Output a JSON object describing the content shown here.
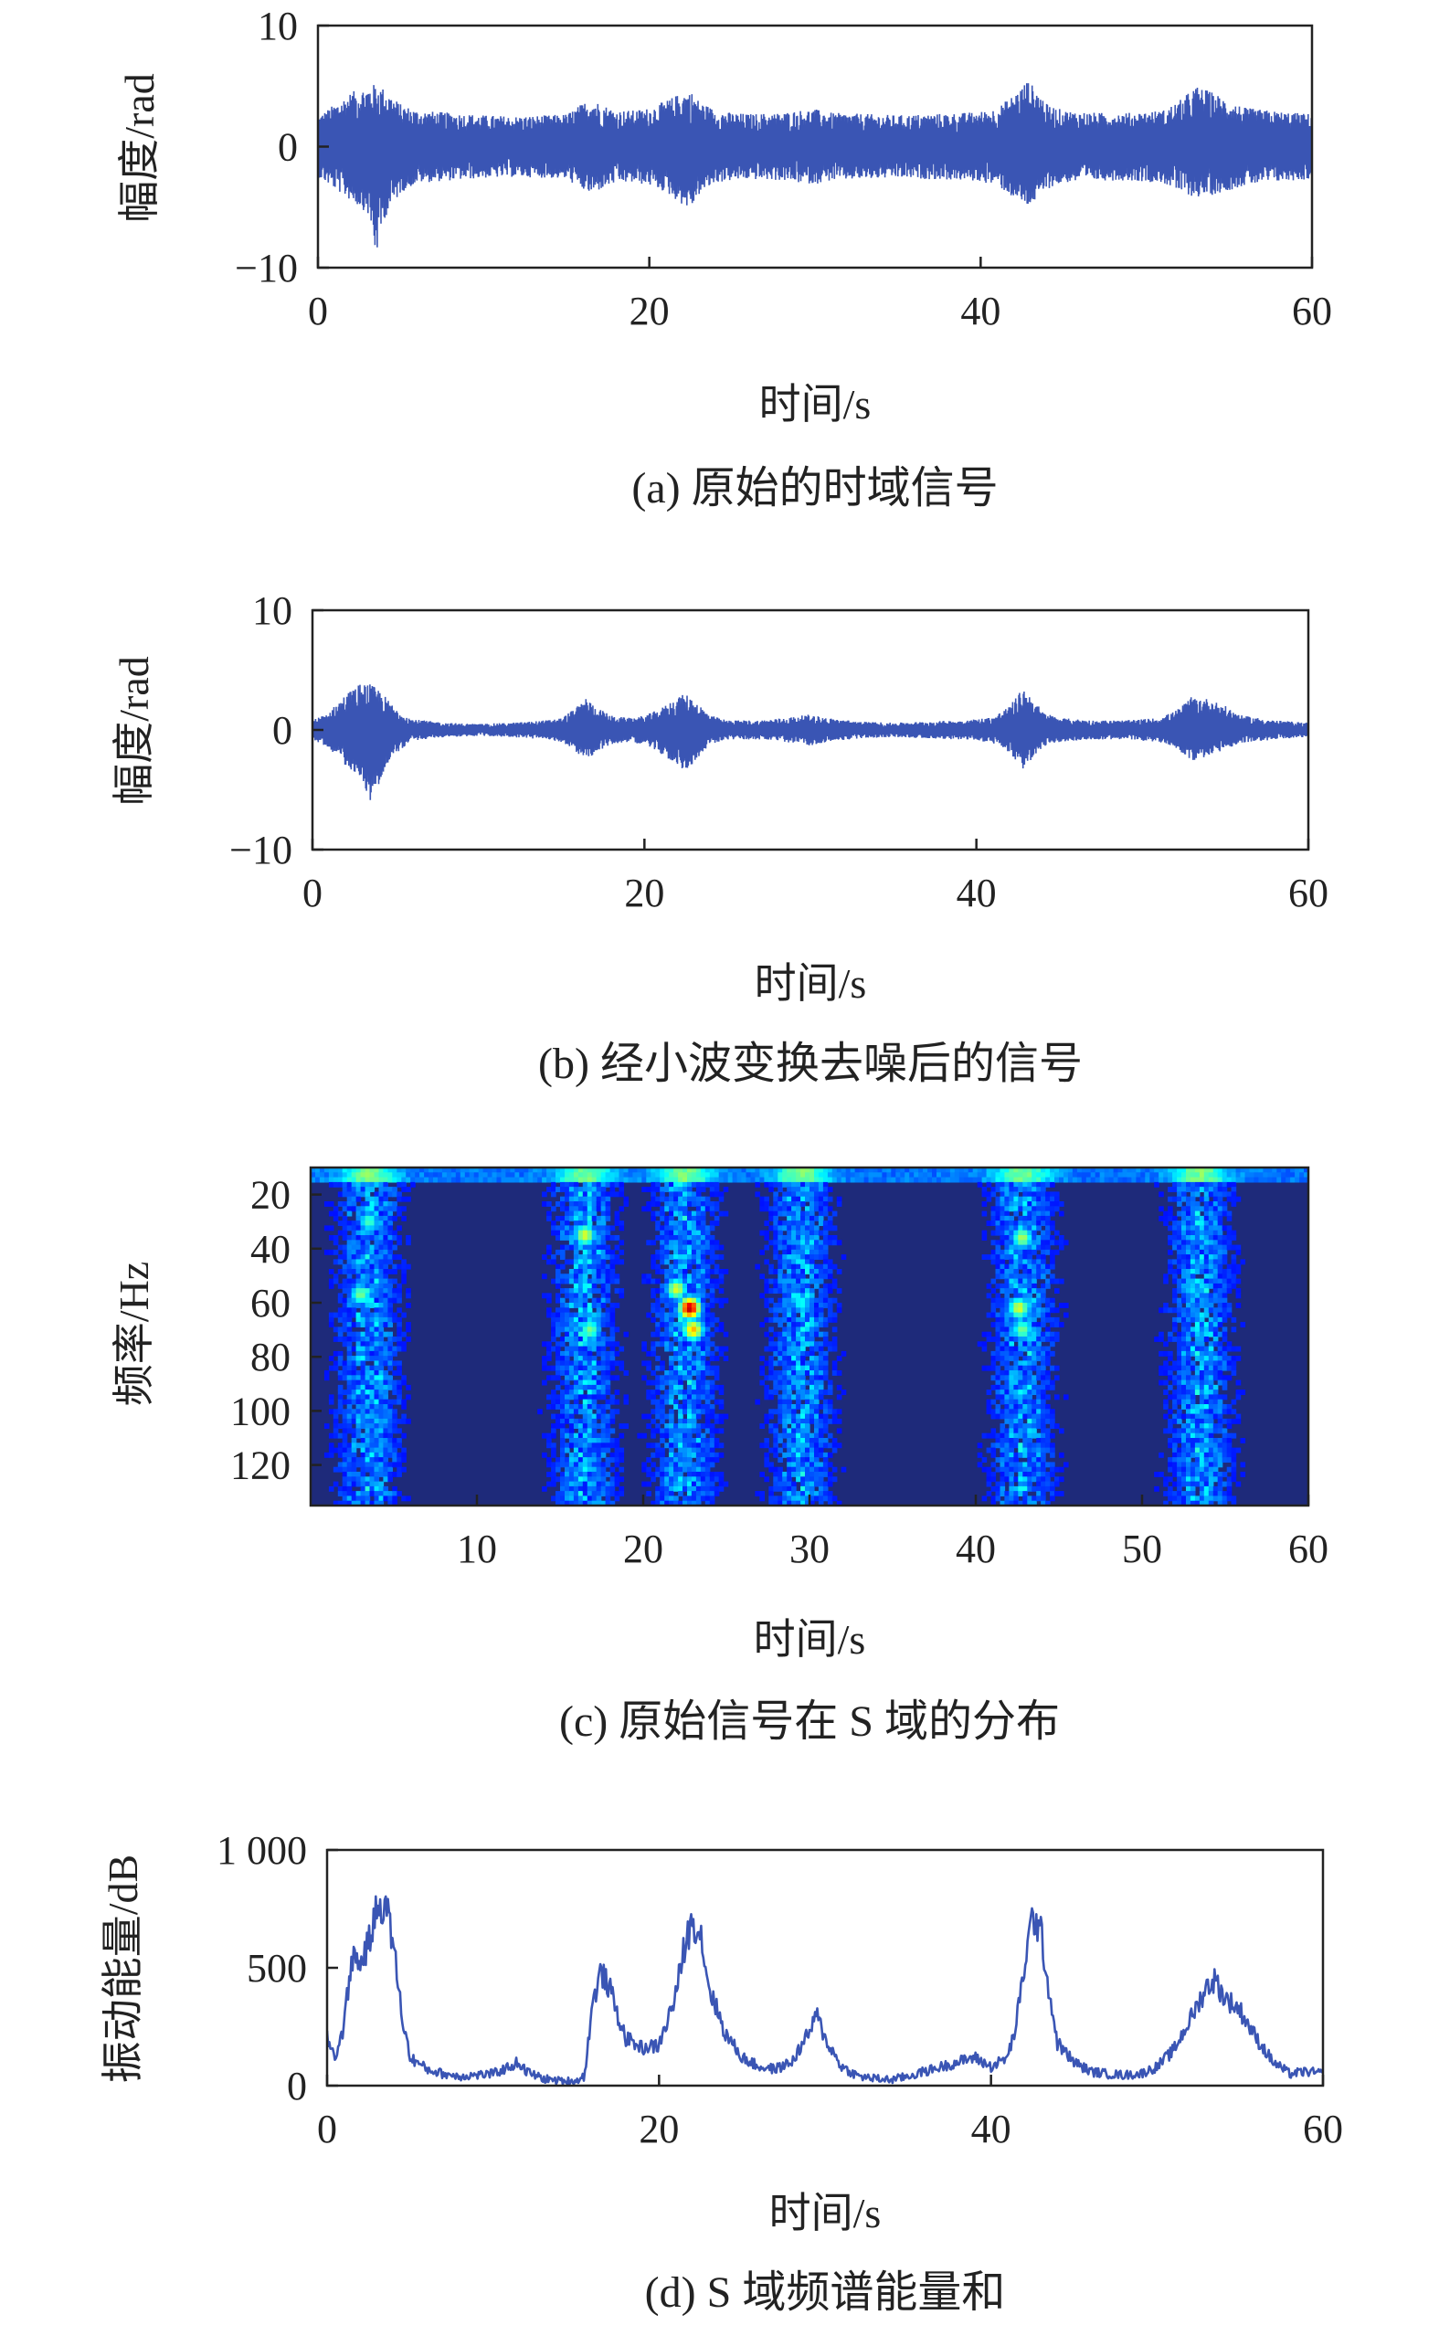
{
  "chart_data": [
    {
      "id": "a",
      "type": "line",
      "caption": "(a) 原始的时域信号",
      "xlabel": "时间/s",
      "ylabel": "幅度/rad",
      "xlim": [
        0,
        60
      ],
      "ylim": [
        -10,
        10
      ],
      "xticks": [
        "0",
        "20",
        "40",
        "60"
      ],
      "yticks": [
        "10",
        "0",
        "−10"
      ],
      "grid": false,
      "color": "#3a55b4",
      "envelope": {
        "x": [
          0,
          1,
          2,
          3,
          3.5,
          4,
          5,
          6,
          8,
          10,
          12,
          14,
          15,
          16,
          16.5,
          17,
          18,
          19,
          20,
          21,
          22,
          22.5,
          23,
          24,
          25,
          26,
          28,
          29,
          30,
          31,
          33,
          35,
          37,
          39,
          40,
          41,
          42,
          42.8,
          43.5,
          44,
          45,
          47,
          49,
          51,
          52,
          53,
          54,
          55,
          56,
          58,
          60
        ],
        "upper": [
          2.5,
          3.5,
          4.5,
          5.0,
          5.2,
          4.8,
          3.5,
          3.0,
          2.8,
          2.6,
          2.5,
          2.6,
          2.7,
          3.6,
          4.0,
          3.6,
          3.0,
          3.0,
          3.2,
          3.8,
          4.5,
          4.6,
          3.8,
          3.0,
          2.8,
          2.7,
          2.8,
          3.0,
          3.1,
          2.8,
          2.7,
          2.6,
          2.7,
          2.8,
          2.9,
          3.2,
          4.3,
          5.5,
          4.6,
          3.5,
          3.0,
          2.8,
          2.8,
          3.0,
          3.8,
          5.0,
          4.5,
          3.8,
          3.2,
          2.9,
          2.7
        ],
        "lower": [
          -2.5,
          -3.5,
          -4.5,
          -5.5,
          -9.2,
          -6.0,
          -3.8,
          -3.0,
          -2.8,
          -2.6,
          -2.5,
          -2.6,
          -2.7,
          -3.6,
          -4.0,
          -3.6,
          -3.0,
          -3.0,
          -3.2,
          -3.8,
          -4.8,
          -5.2,
          -4.0,
          -3.0,
          -2.8,
          -2.7,
          -2.8,
          -3.0,
          -3.1,
          -2.8,
          -2.7,
          -2.6,
          -2.7,
          -2.8,
          -2.9,
          -3.2,
          -4.3,
          -5.0,
          -4.4,
          -3.5,
          -3.0,
          -2.8,
          -2.8,
          -3.0,
          -3.8,
          -4.2,
          -4.0,
          -3.6,
          -3.2,
          -2.9,
          -2.7
        ]
      }
    },
    {
      "id": "b",
      "type": "line",
      "caption": "(b) 经小波变换去噪后的信号",
      "xlabel": "时间/s",
      "ylabel": "幅度/rad",
      "xlim": [
        0,
        60
      ],
      "ylim": [
        -10,
        10
      ],
      "xticks": [
        "0",
        "20",
        "40",
        "60"
      ],
      "yticks": [
        "10",
        "0",
        "−10"
      ],
      "grid": false,
      "color": "#3a55b4",
      "envelope": {
        "x": [
          0,
          1,
          2,
          3,
          3.5,
          4,
          5,
          6,
          8,
          10,
          12,
          14,
          15,
          16,
          16.5,
          17,
          18,
          19,
          20,
          21,
          22,
          22.5,
          23,
          24,
          25,
          27,
          29,
          30,
          31,
          33,
          35,
          37,
          39,
          40,
          41,
          42,
          42.8,
          43.5,
          44,
          45,
          47,
          49,
          51,
          52,
          53,
          54,
          55,
          56,
          58,
          60
        ],
        "upper": [
          0.8,
          1.5,
          3.0,
          4.0,
          3.8,
          3.4,
          1.8,
          0.9,
          0.6,
          0.5,
          0.6,
          0.8,
          1.0,
          2.0,
          2.7,
          2.0,
          1.2,
          1.0,
          1.2,
          1.8,
          2.8,
          3.0,
          2.5,
          1.2,
          0.8,
          0.8,
          1.1,
          1.3,
          1.0,
          0.7,
          0.6,
          0.7,
          0.8,
          0.9,
          1.1,
          2.0,
          3.5,
          2.5,
          1.5,
          1.0,
          0.8,
          0.8,
          1.0,
          1.6,
          2.8,
          2.6,
          2.0,
          1.2,
          0.8,
          0.6
        ],
        "lower": [
          -0.8,
          -1.5,
          -3.0,
          -4.0,
          -6.3,
          -4.5,
          -2.0,
          -0.9,
          -0.6,
          -0.5,
          -0.6,
          -0.8,
          -1.0,
          -2.0,
          -2.5,
          -2.0,
          -1.2,
          -1.0,
          -1.2,
          -2.0,
          -3.0,
          -3.6,
          -2.6,
          -1.2,
          -0.8,
          -0.8,
          -1.1,
          -1.3,
          -1.0,
          -0.7,
          -0.6,
          -0.7,
          -0.8,
          -0.9,
          -1.1,
          -2.0,
          -3.3,
          -2.2,
          -1.4,
          -1.0,
          -0.8,
          -0.8,
          -1.0,
          -1.5,
          -2.6,
          -2.2,
          -1.6,
          -1.1,
          -0.8,
          -0.6
        ]
      }
    },
    {
      "id": "c",
      "type": "heatmap",
      "caption": "(c) 原始信号在 S 域的分布",
      "xlabel": "时间/s",
      "ylabel": "频率/Hz",
      "xlim": [
        0,
        60
      ],
      "ylim": [
        10,
        135
      ],
      "xticks": [
        "10",
        "20",
        "30",
        "40",
        "50",
        "60"
      ],
      "yticks": [
        "20",
        "40",
        "60",
        "80",
        "100",
        "120"
      ],
      "colormap": "jet",
      "background": "#1e2a7a",
      "hotspots": [
        {
          "t": 3.5,
          "f": 12,
          "v": 0.55
        },
        {
          "t": 3.5,
          "f": 30,
          "v": 0.45
        },
        {
          "t": 3.0,
          "f": 57,
          "v": 0.5
        },
        {
          "t": 16.5,
          "f": 35,
          "v": 0.6
        },
        {
          "t": 16.8,
          "f": 70,
          "v": 0.5
        },
        {
          "t": 17.0,
          "f": 12,
          "v": 0.3
        },
        {
          "t": 22.0,
          "f": 55,
          "v": 0.6
        },
        {
          "t": 22.8,
          "f": 62,
          "v": 0.95
        },
        {
          "t": 23.0,
          "f": 70,
          "v": 0.7
        },
        {
          "t": 22.5,
          "f": 15,
          "v": 0.35
        },
        {
          "t": 29.5,
          "f": 60,
          "v": 0.4
        },
        {
          "t": 29.0,
          "f": 15,
          "v": 0.3
        },
        {
          "t": 42.8,
          "f": 36,
          "v": 0.55
        },
        {
          "t": 42.6,
          "f": 62,
          "v": 0.6
        },
        {
          "t": 42.8,
          "f": 70,
          "v": 0.5
        },
        {
          "t": 43.0,
          "f": 15,
          "v": 0.35
        },
        {
          "t": 53.5,
          "f": 12,
          "v": 0.4
        },
        {
          "t": 53.0,
          "f": 55,
          "v": 0.35
        }
      ]
    },
    {
      "id": "d",
      "type": "line",
      "caption": "(d) S 域频谱能量和",
      "xlabel": "时间/s",
      "ylabel": "振动能量/dB",
      "xlim": [
        0,
        60
      ],
      "ylim": [
        0,
        1000
      ],
      "xticks": [
        "0",
        "20",
        "40",
        "60"
      ],
      "yticks": [
        "1 000",
        "500",
        "0"
      ],
      "grid": false,
      "color": "#3a55b4",
      "x": [
        0,
        0.5,
        1,
        1.5,
        2,
        2.5,
        3,
        3.5,
        4,
        4.5,
        5,
        6,
        7,
        8,
        9,
        10,
        11,
        11.5,
        12,
        13,
        14,
        15,
        15.5,
        16,
        16.5,
        17,
        17.5,
        18,
        19,
        20,
        21,
        21.5,
        22,
        22.5,
        23,
        24,
        25,
        26,
        27,
        28,
        29,
        29.5,
        30,
        31,
        32,
        33,
        34,
        35,
        36,
        37,
        38,
        39,
        40,
        41,
        41.5,
        42,
        42.5,
        43,
        43.5,
        44,
        45,
        46,
        47,
        48,
        49,
        50,
        51,
        52,
        53,
        53.5,
        54,
        55,
        56,
        57,
        58,
        59,
        60
      ],
      "y": [
        200,
        120,
        250,
        550,
        520,
        600,
        750,
        780,
        600,
        300,
        120,
        70,
        50,
        40,
        45,
        50,
        80,
        100,
        60,
        30,
        20,
        20,
        40,
        350,
        480,
        420,
        300,
        200,
        160,
        170,
        380,
        580,
        700,
        650,
        420,
        220,
        120,
        80,
        70,
        100,
        220,
        300,
        200,
        80,
        40,
        30,
        25,
        40,
        60,
        80,
        100,
        120,
        80,
        120,
        250,
        500,
        720,
        650,
        400,
        180,
        100,
        60,
        50,
        45,
        50,
        80,
        150,
        280,
        420,
        450,
        380,
        320,
        200,
        100,
        50,
        60,
        50
      ]
    }
  ]
}
